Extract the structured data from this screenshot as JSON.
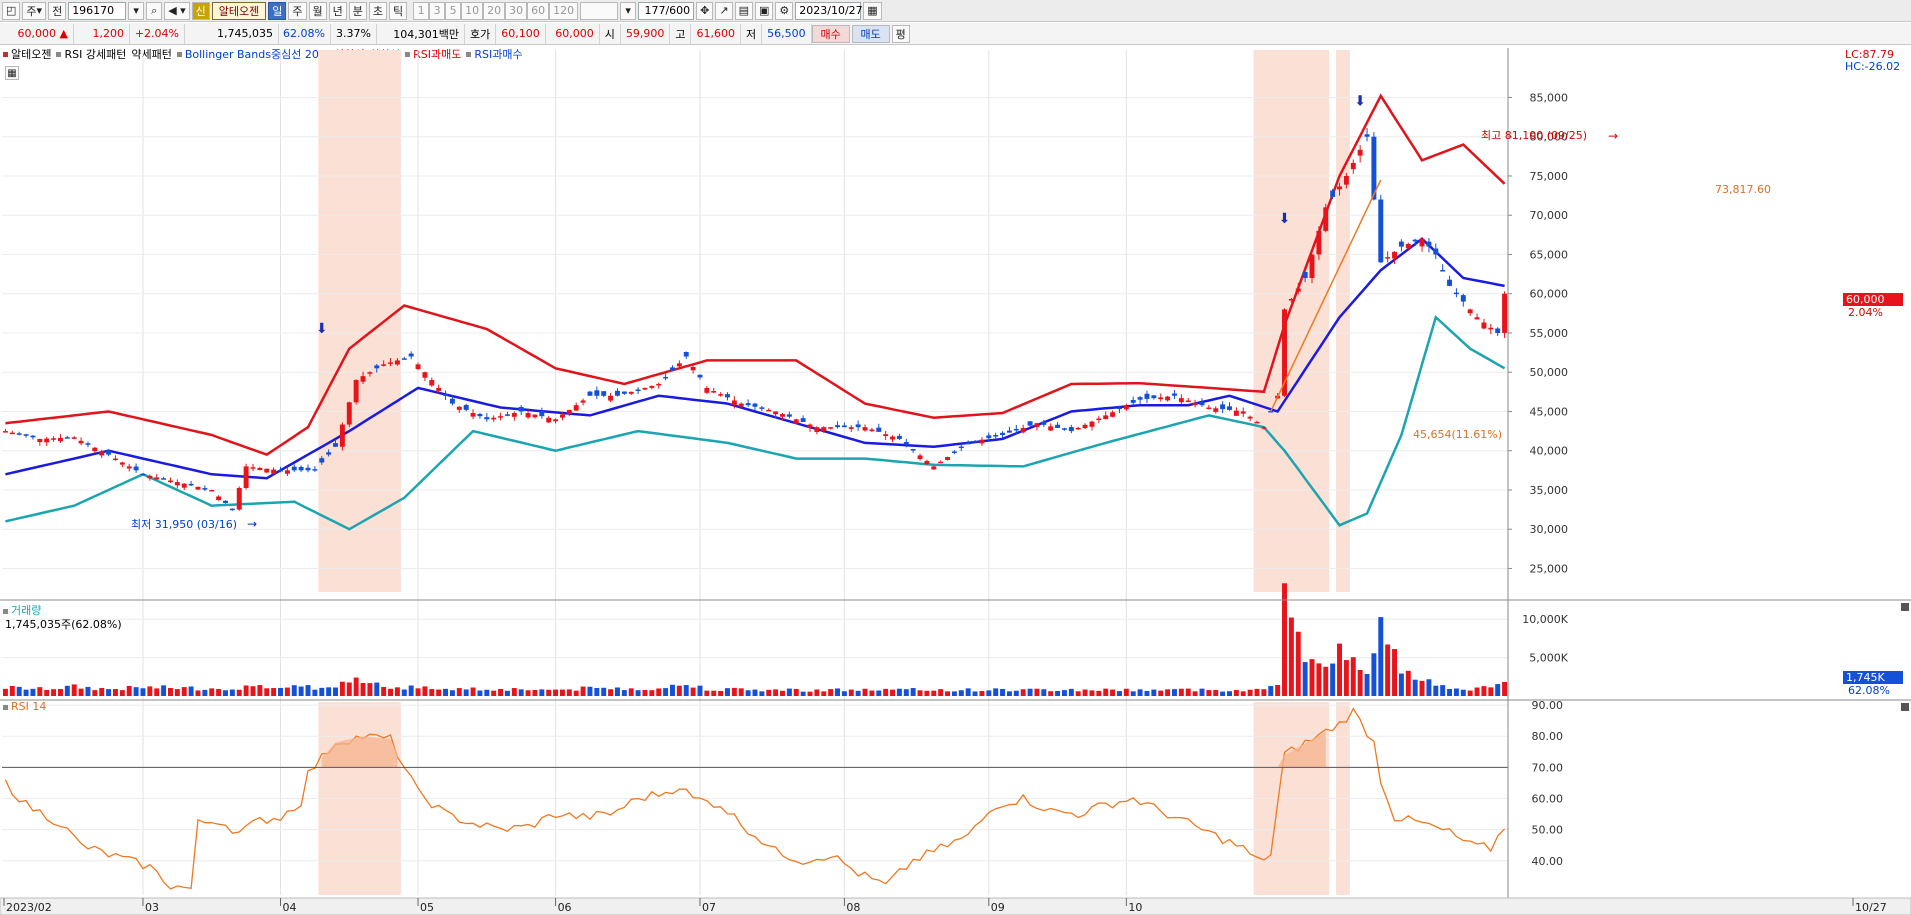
{
  "toolbar": {
    "period_label": "주",
    "prev_label": "전",
    "code": "196170",
    "stock_name": "알테오젠",
    "daily": "일",
    "weekly": "주",
    "monthly": "월",
    "yearly": "년",
    "minute": "분",
    "second": "초",
    "tick": "틱",
    "intervals": [
      "1",
      "3",
      "5",
      "10",
      "20",
      "30",
      "60",
      "120"
    ],
    "count": "177/600",
    "date": "2023/10/27"
  },
  "quote": {
    "price": "60,000",
    "change": "1,200",
    "change_pct": "+2.04%",
    "volume": "1,745,035",
    "volume_ratio": "62.08%",
    "turnover": "3.37%",
    "amount": "104,301백만",
    "hoga_label": "호가",
    "hoga_ask": "60,100",
    "hoga_bid": "60,000",
    "open_label": "시",
    "open": "59,900",
    "high_label": "고",
    "high": "61,600",
    "low_label": "저",
    "low": "56,500",
    "buy": "매수",
    "sell": "매도",
    "eval": "평"
  },
  "legend": [
    "알테오젠",
    "RSI 강세패턴",
    "약세패턴",
    "Bollinger Bands중심선 20,2",
    "상한선",
    "하한선",
    "RSI과매도",
    "RSI과매수"
  ],
  "colors": {
    "up": "#e8141b",
    "down": "#1450d8",
    "mid": "#1a1ae0",
    "upper": "#e0141b",
    "lower": "#1ba5b0",
    "rsi": "#f07820",
    "shade": "#fbe0d6"
  },
  "price_panel": {
    "lc": "LC:87.79",
    "hc": "HC:-26.02",
    "current_price": "60,000",
    "current_pct": "2.04%",
    "high_note": "최고 81,100 (09/25)",
    "low_note": "최저 31,950 (03/16)",
    "trend_end_label": "73,817.60",
    "trend_start_label": "45,654(11.61%)"
  },
  "volume_panel": {
    "title": "거래량",
    "summary": "1,745,035주(62.08%)",
    "current": "1,745K",
    "current_pct": "62.08%"
  },
  "rsi_panel": {
    "title": "RSI 14"
  },
  "chart_data": {
    "type": "candlestick",
    "x_ticks": [
      "2023/02",
      "03",
      "04",
      "05",
      "06",
      "07",
      "08",
      "09",
      "10",
      "10/27"
    ],
    "price_axis": [
      "85,000",
      "80,000",
      "75,000",
      "70,000",
      "65,000",
      "60,000",
      "55,000",
      "50,000",
      "45,000",
      "40,000",
      "35,000",
      "30,000",
      "25,000"
    ],
    "price_range": [
      22000,
      88500
    ],
    "volume_axis": [
      "10,000K",
      "5,000K"
    ],
    "volume_range": [
      0,
      12500
    ],
    "rsi_axis": [
      "90.00",
      "80.00",
      "70.00",
      "60.00",
      "50.00",
      "40.00"
    ],
    "rsi_range": [
      29,
      91
    ],
    "rsi_threshold": 70,
    "start_index": [
      [
        2,
        30000,
        0
      ],
      [
        1,
        0,
        69
      ],
      [
        1,
        0,
        57
      ],
      [
        1,
        0,
        69
      ],
      [
        1,
        0,
        70
      ],
      [
        0,
        13,
        45
      ],
      [
        2,
        0,
        88
      ],
      [
        0,
        76,
        0
      ]
    ],
    "anchors": [
      [
        0,
        42500,
        1100
      ],
      [
        5,
        41500,
        900
      ],
      [
        10,
        41700,
        1200
      ],
      [
        15,
        39500,
        900
      ],
      [
        20,
        37000,
        1100
      ],
      [
        30,
        35000,
        1000
      ],
      [
        33,
        32500,
        1100
      ],
      [
        35,
        38000,
        1200
      ],
      [
        40,
        37500,
        1100
      ],
      [
        45,
        37500,
        1100
      ],
      [
        48,
        40500,
        1200
      ],
      [
        51,
        49000,
        2700
      ],
      [
        55,
        51000,
        1300
      ],
      [
        59,
        52000,
        1100
      ],
      [
        62,
        49000,
        1000
      ],
      [
        65,
        46000,
        1000
      ],
      [
        70,
        44000,
        900
      ],
      [
        75,
        45000,
        900
      ],
      [
        80,
        44000,
        800
      ],
      [
        85,
        47000,
        1000
      ],
      [
        89,
        47000,
        1000
      ],
      [
        95,
        48500,
        1000
      ],
      [
        99,
        52000,
        1500
      ],
      [
        102,
        48000,
        1000
      ],
      [
        107,
        46000,
        800
      ],
      [
        112,
        45000,
        800
      ],
      [
        118,
        43000,
        800
      ],
      [
        125,
        43000,
        800
      ],
      [
        130,
        41500,
        800
      ],
      [
        135,
        38000,
        800
      ],
      [
        140,
        41000,
        800
      ],
      [
        145,
        42000,
        800
      ],
      [
        150,
        43500,
        800
      ],
      [
        155,
        42500,
        800
      ],
      [
        160,
        44500,
        800
      ],
      [
        165,
        46500,
        800
      ],
      [
        170,
        47000,
        800
      ],
      [
        175,
        45500,
        800
      ],
      [
        180,
        45000,
        800
      ],
      [
        183,
        43000,
        800
      ],
      [
        185,
        47000,
        2000
      ],
      [
        186,
        58000,
        11500
      ],
      [
        189,
        62000,
        4000
      ],
      [
        192,
        71000,
        5000
      ],
      [
        195,
        75000,
        5500
      ],
      [
        198,
        80000,
        4000
      ],
      [
        200,
        64000,
        9000
      ],
      [
        203,
        66000,
        3000
      ],
      [
        206,
        67000,
        2000
      ],
      [
        208,
        65000,
        1600
      ],
      [
        210,
        61000,
        1300
      ],
      [
        214,
        57000,
        900
      ],
      [
        217,
        55000,
        1200
      ],
      [
        218,
        60000,
        1745
      ]
    ],
    "rsi_anchors": [
      [
        0,
        65
      ],
      [
        3,
        58
      ],
      [
        8,
        52
      ],
      [
        11,
        45
      ],
      [
        15,
        42
      ],
      [
        18,
        40
      ],
      [
        21,
        38
      ],
      [
        24,
        32
      ],
      [
        27,
        31
      ],
      [
        28,
        52
      ],
      [
        31,
        53
      ],
      [
        34,
        49
      ],
      [
        37,
        53
      ],
      [
        40,
        54
      ],
      [
        43,
        59
      ],
      [
        44,
        68
      ],
      [
        48,
        78
      ],
      [
        52,
        80
      ],
      [
        56,
        79
      ],
      [
        58,
        70
      ],
      [
        60,
        62
      ],
      [
        64,
        55
      ],
      [
        68,
        52
      ],
      [
        72,
        50
      ],
      [
        76,
        51
      ],
      [
        80,
        55
      ],
      [
        84,
        54
      ],
      [
        88,
        55
      ],
      [
        92,
        60
      ],
      [
        96,
        62
      ],
      [
        98,
        64
      ],
      [
        100,
        60
      ],
      [
        104,
        58
      ],
      [
        108,
        50
      ],
      [
        112,
        43
      ],
      [
        116,
        40
      ],
      [
        120,
        42
      ],
      [
        124,
        36
      ],
      [
        128,
        32
      ],
      [
        132,
        40
      ],
      [
        136,
        44
      ],
      [
        140,
        48
      ],
      [
        144,
        58
      ],
      [
        148,
        60
      ],
      [
        152,
        56
      ],
      [
        156,
        55
      ],
      [
        160,
        58
      ],
      [
        164,
        60
      ],
      [
        168,
        56
      ],
      [
        172,
        52
      ],
      [
        176,
        48
      ],
      [
        180,
        44
      ],
      [
        182,
        40
      ],
      [
        184,
        42
      ],
      [
        186,
        74
      ],
      [
        190,
        79
      ],
      [
        194,
        84
      ],
      [
        196,
        88
      ],
      [
        199,
        78
      ],
      [
        200,
        66
      ],
      [
        202,
        54
      ],
      [
        206,
        52
      ],
      [
        210,
        49
      ],
      [
        213,
        45
      ],
      [
        216,
        44
      ],
      [
        218,
        51
      ]
    ],
    "bands": {
      "mid": [
        [
          0,
          37000
        ],
        [
          15,
          40000
        ],
        [
          30,
          37000
        ],
        [
          38,
          36500
        ],
        [
          50,
          42500
        ],
        [
          60,
          48000
        ],
        [
          72,
          45500
        ],
        [
          85,
          44500
        ],
        [
          95,
          47000
        ],
        [
          105,
          46000
        ],
        [
          115,
          43500
        ],
        [
          125,
          41000
        ],
        [
          135,
          40500
        ],
        [
          145,
          41500
        ],
        [
          155,
          45000
        ],
        [
          165,
          45800
        ],
        [
          172,
          45800
        ],
        [
          178,
          47000
        ],
        [
          185,
          45000
        ],
        [
          194,
          57000
        ],
        [
          200,
          63000
        ],
        [
          206,
          67000
        ],
        [
          212,
          62000
        ],
        [
          218,
          61000
        ]
      ],
      "upper": [
        [
          0,
          43500
        ],
        [
          15,
          45000
        ],
        [
          30,
          42000
        ],
        [
          38,
          39500
        ],
        [
          44,
          43000
        ],
        [
          50,
          53000
        ],
        [
          58,
          58500
        ],
        [
          70,
          55500
        ],
        [
          80,
          50500
        ],
        [
          90,
          48500
        ],
        [
          102,
          51500
        ],
        [
          115,
          51500
        ],
        [
          125,
          46000
        ],
        [
          135,
          44200
        ],
        [
          145,
          44800
        ],
        [
          155,
          48500
        ],
        [
          165,
          48600
        ],
        [
          175,
          48000
        ],
        [
          183,
          47500
        ],
        [
          186,
          56000
        ],
        [
          194,
          75000
        ],
        [
          200,
          85200
        ],
        [
          206,
          77000
        ],
        [
          212,
          79000
        ],
        [
          218,
          74000
        ]
      ],
      "lower": [
        [
          0,
          31000
        ],
        [
          10,
          33000
        ],
        [
          20,
          37000
        ],
        [
          30,
          33000
        ],
        [
          42,
          33500
        ],
        [
          50,
          30000
        ],
        [
          58,
          34000
        ],
        [
          68,
          42500
        ],
        [
          80,
          40000
        ],
        [
          92,
          42500
        ],
        [
          105,
          41000
        ],
        [
          115,
          39000
        ],
        [
          125,
          39000
        ],
        [
          135,
          38200
        ],
        [
          148,
          38000
        ],
        [
          160,
          41000
        ],
        [
          175,
          44500
        ],
        [
          183,
          43000
        ],
        [
          186,
          40000
        ],
        [
          194,
          30500
        ],
        [
          198,
          32000
        ],
        [
          203,
          42000
        ],
        [
          208,
          57000
        ],
        [
          213,
          53000
        ],
        [
          218,
          50500
        ]
      ]
    },
    "shaded_regions": [
      [
        46,
        57
      ],
      [
        182,
        192
      ],
      [
        194,
        195
      ]
    ],
    "total_bars": 219
  }
}
